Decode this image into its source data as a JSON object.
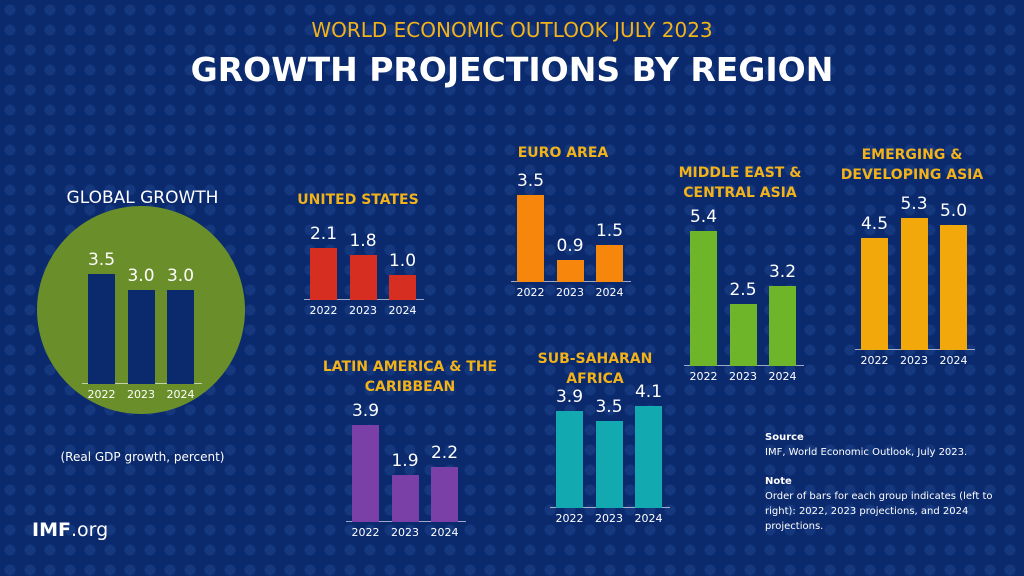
{
  "header": {
    "supertitle": "WORLD ECONOMIC OUTLOOK JULY 2023",
    "title": "GROWTH PROJECTIONS BY REGION"
  },
  "global": {
    "title": "GLOBAL GROWTH",
    "note": "(Real GDP growth, percent)"
  },
  "footer": {
    "logo_bold": "IMF",
    "logo_rest": ".org",
    "source_label": "Source",
    "source_text": "IMF, World Economic Outlook, July 2023.",
    "note_label": "Note",
    "note_text": "Order of bars for each group indicates (left to right): 2022, 2023 projections, and 2024 projections."
  },
  "chart_data": [
    {
      "type": "bar",
      "id": "global",
      "title": "GLOBAL GROWTH",
      "categories": [
        "2022",
        "2023",
        "2024"
      ],
      "values": [
        3.5,
        3.0,
        3.0
      ],
      "color": "#0b2a6e",
      "labels": [
        "3.5",
        "3.0",
        "3.0"
      ]
    },
    {
      "type": "bar",
      "id": "us",
      "title": "UNITED STATES",
      "categories": [
        "2022",
        "2023",
        "2024"
      ],
      "values": [
        2.1,
        1.8,
        1.0
      ],
      "color": "#d62e20",
      "labels": [
        "2.1",
        "1.8",
        "1.0"
      ]
    },
    {
      "type": "bar",
      "id": "euro",
      "title": "EURO AREA",
      "categories": [
        "2022",
        "2023",
        "2024"
      ],
      "values": [
        3.5,
        0.9,
        1.5
      ],
      "color": "#f7860d",
      "labels": [
        "3.5",
        "0.9",
        "1.5"
      ]
    },
    {
      "type": "bar",
      "id": "me",
      "title": "MIDDLE EAST & CENTRAL ASIA",
      "categories": [
        "2022",
        "2023",
        "2024"
      ],
      "values": [
        5.4,
        2.5,
        3.2
      ],
      "color": "#6fb52a",
      "labels": [
        "5.4",
        "2.5",
        "3.2"
      ]
    },
    {
      "type": "bar",
      "id": "asia",
      "title": "EMERGING & DEVELOPING ASIA",
      "categories": [
        "2022",
        "2023",
        "2024"
      ],
      "values": [
        4.5,
        5.3,
        5.0
      ],
      "color": "#f2a80a",
      "labels": [
        "4.5",
        "5.3",
        "5.0"
      ]
    },
    {
      "type": "bar",
      "id": "latam",
      "title": "LATIN AMERICA & THE CARIBBEAN",
      "categories": [
        "2022",
        "2023",
        "2024"
      ],
      "values": [
        3.9,
        1.9,
        2.2
      ],
      "color": "#7b3fa8",
      "labels": [
        "3.9",
        "1.9",
        "2.2"
      ]
    },
    {
      "type": "bar",
      "id": "ssa",
      "title": "SUB-SAHARAN AFRICA",
      "categories": [
        "2022",
        "2023",
        "2024"
      ],
      "values": [
        3.9,
        3.5,
        4.1
      ],
      "color": "#12aab0",
      "labels": [
        "3.9",
        "3.5",
        "4.1"
      ]
    }
  ]
}
